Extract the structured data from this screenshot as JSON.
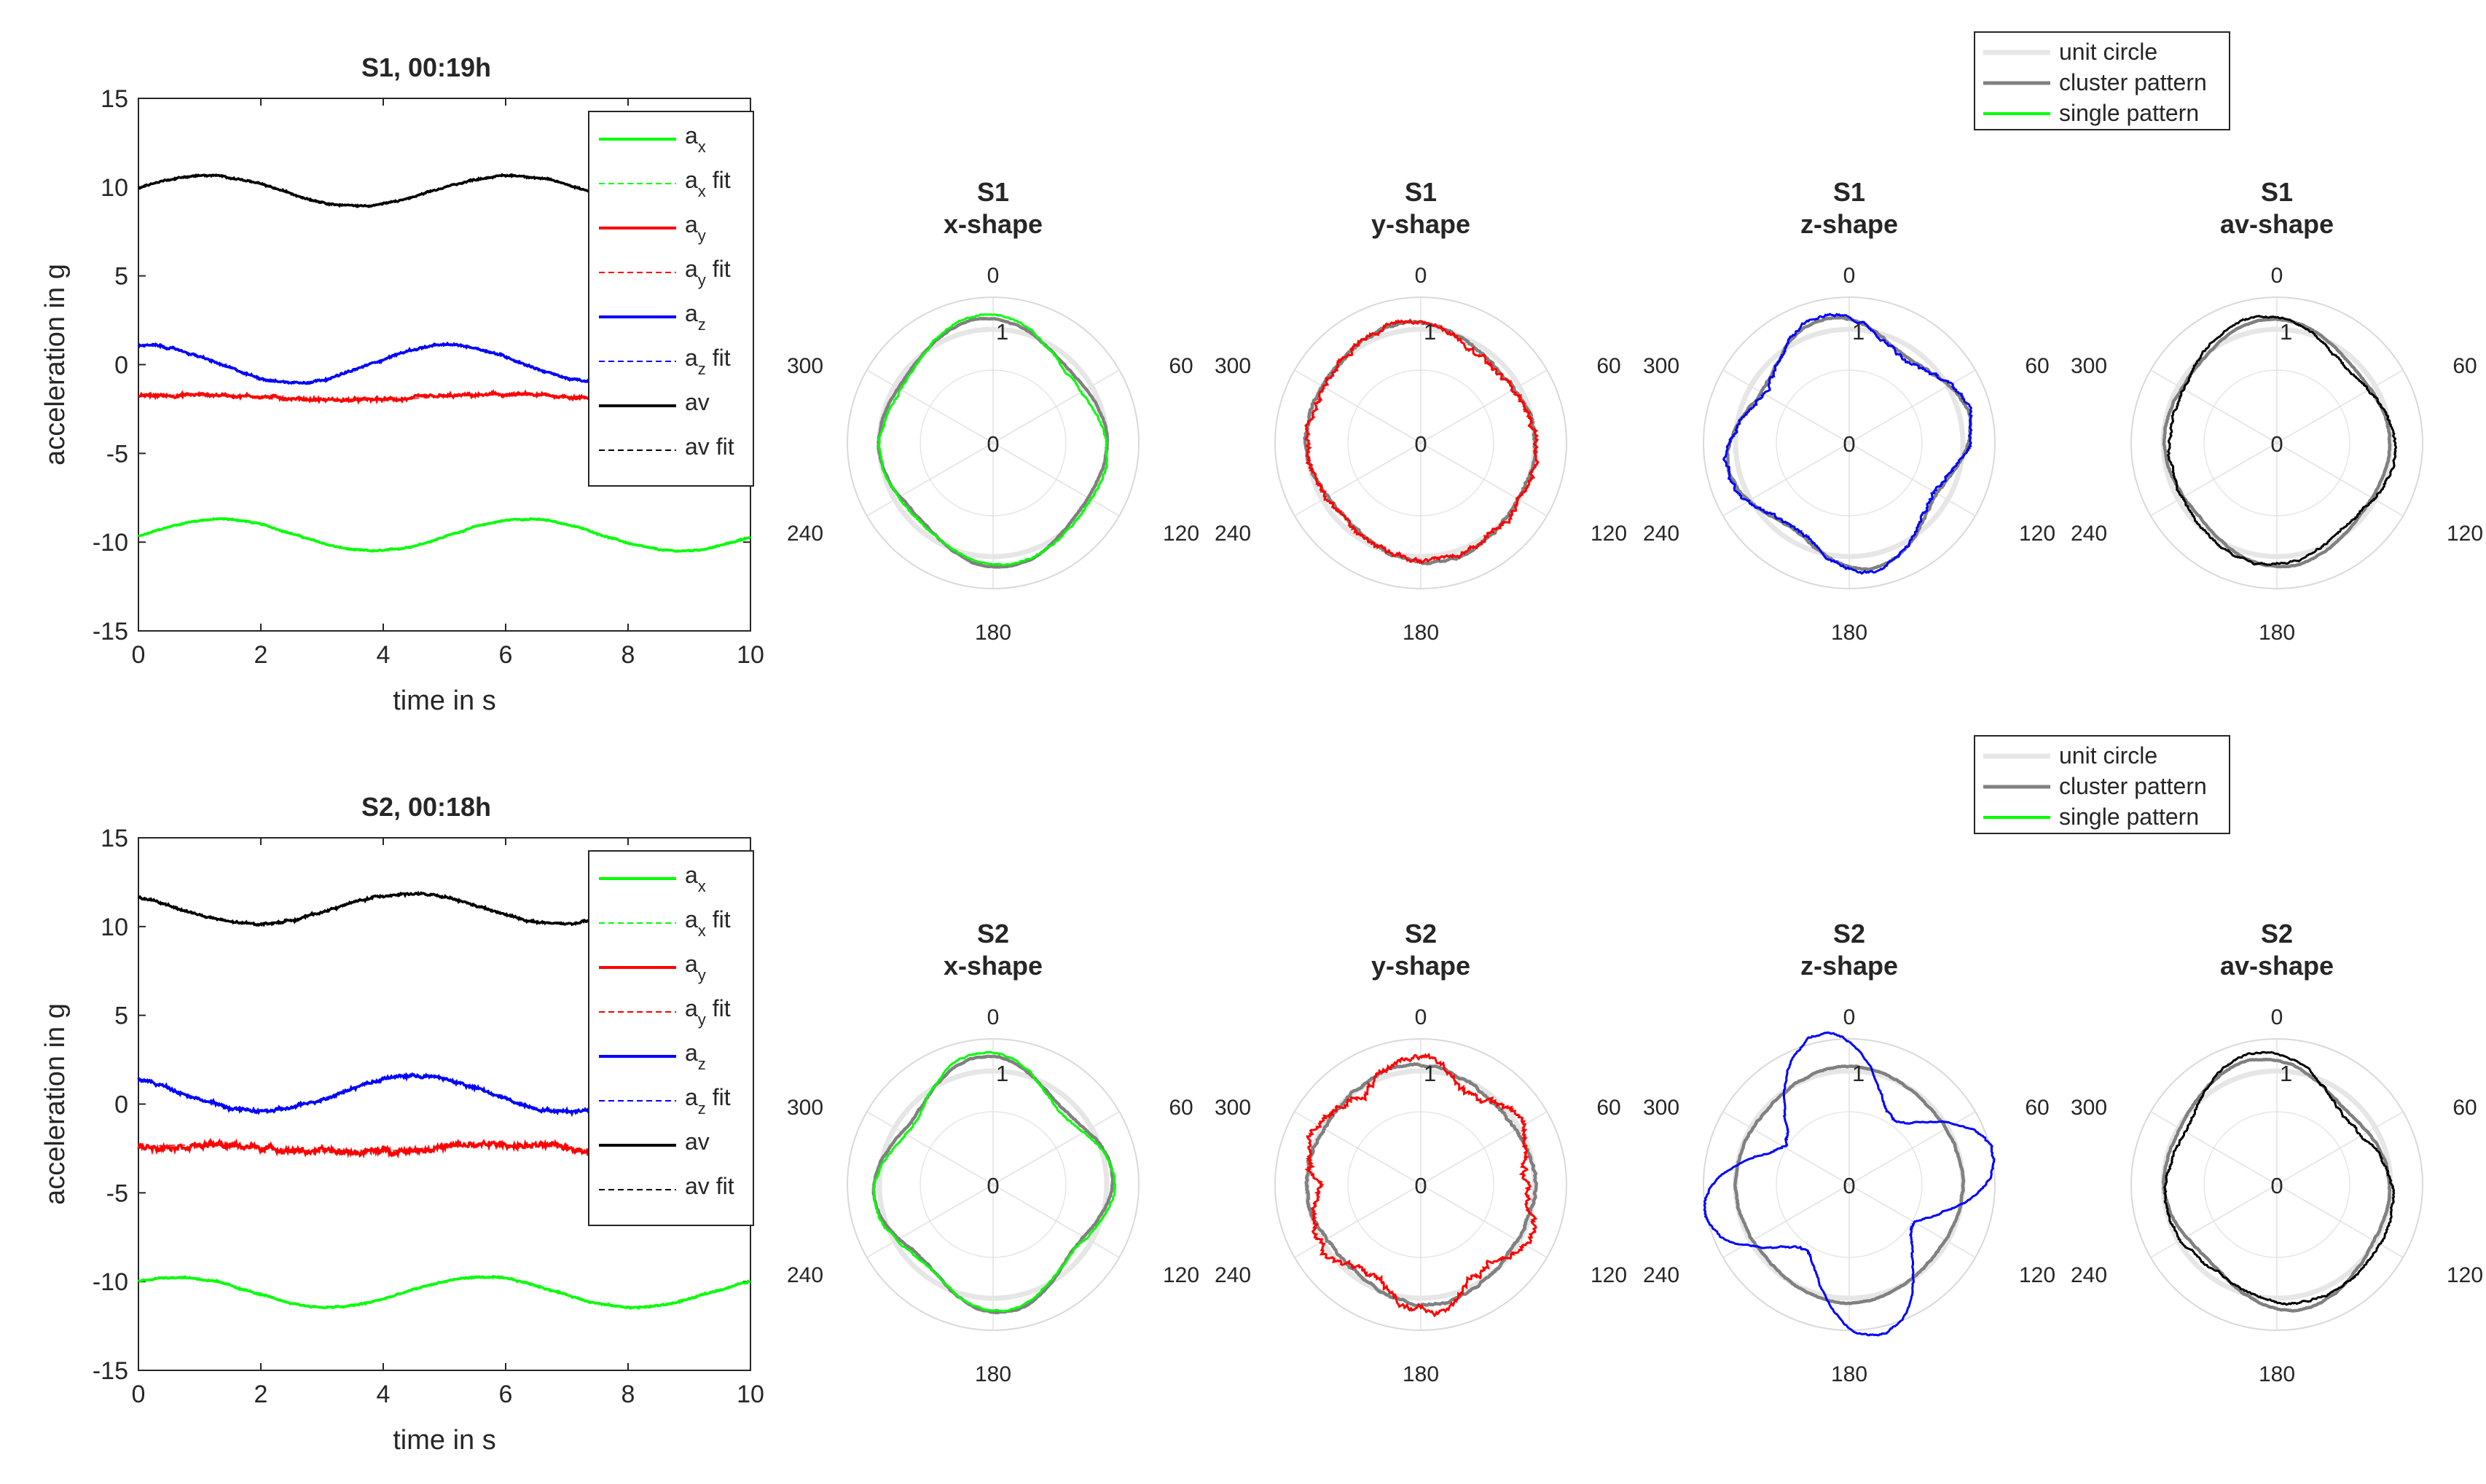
{
  "chart_data": [
    {
      "type": "line",
      "title": "S1, 00:19h",
      "xlabel": "time in s",
      "ylabel": "acceleration in g",
      "xlim": [
        0,
        10
      ],
      "ylim": [
        -15,
        15
      ],
      "xticks": [
        "0",
        "2",
        "4",
        "6",
        "8",
        "10"
      ],
      "yticks": [
        "15",
        "10",
        "5",
        "0",
        "-5",
        "-10",
        "-15"
      ],
      "legend": [
        {
          "label": "a",
          "sub": "x",
          "suffix": "",
          "color": "#00ff00",
          "dashed": false
        },
        {
          "label": "a",
          "sub": "x",
          "suffix": " fit",
          "color": "#00ff00",
          "dashed": true
        },
        {
          "label": "a",
          "sub": "y",
          "suffix": "",
          "color": "#ff0000",
          "dashed": false
        },
        {
          "label": "a",
          "sub": "y",
          "suffix": " fit",
          "color": "#ff0000",
          "dashed": true
        },
        {
          "label": "a",
          "sub": "z",
          "suffix": "",
          "color": "#0000ff",
          "dashed": false
        },
        {
          "label": "a",
          "sub": "z",
          "suffix": " fit",
          "color": "#0000ff",
          "dashed": true
        },
        {
          "label": "av",
          "sub": "",
          "suffix": "",
          "color": "#000000",
          "dashed": false
        },
        {
          "label": "av",
          "sub": "",
          "suffix": " fit",
          "color": "#000000",
          "dashed": true
        }
      ],
      "series": [
        {
          "name": "ax",
          "color": "#00ff00",
          "mean": -9.6,
          "amp": 0.9,
          "period": 5.0,
          "phase": -0.1,
          "noise": 0.05
        },
        {
          "name": "ay",
          "color": "#ff0000",
          "mean": -1.85,
          "amp": 0.15,
          "period": 5.0,
          "phase": 0.3,
          "noise": 0.12
        },
        {
          "name": "az",
          "color": "#0000ff",
          "mean": 0.05,
          "amp": 1.05,
          "period": 5.0,
          "phase": 1.5,
          "noise": 0.08
        },
        {
          "name": "av",
          "color": "#000000",
          "mean": 9.8,
          "amp": 0.85,
          "period": 5.0,
          "phase": 0.2,
          "noise": 0.06
        }
      ]
    },
    {
      "type": "line",
      "title": "S2, 00:18h",
      "xlabel": "time in s",
      "ylabel": "acceleration in g",
      "xlim": [
        0,
        10
      ],
      "ylim": [
        -15,
        15
      ],
      "xticks": [
        "0",
        "2",
        "4",
        "6",
        "8",
        "10"
      ],
      "yticks": [
        "15",
        "10",
        "5",
        "0",
        "-5",
        "-10",
        "-15"
      ],
      "legend": [
        {
          "label": "a",
          "sub": "x",
          "suffix": "",
          "color": "#00ff00",
          "dashed": false
        },
        {
          "label": "a",
          "sub": "x",
          "suffix": " fit",
          "color": "#00ff00",
          "dashed": true
        },
        {
          "label": "a",
          "sub": "y",
          "suffix": "",
          "color": "#ff0000",
          "dashed": false
        },
        {
          "label": "a",
          "sub": "y",
          "suffix": " fit",
          "color": "#ff0000",
          "dashed": true
        },
        {
          "label": "a",
          "sub": "z",
          "suffix": "",
          "color": "#0000ff",
          "dashed": false
        },
        {
          "label": "a",
          "sub": "z",
          "suffix": " fit",
          "color": "#0000ff",
          "dashed": true
        },
        {
          "label": "av",
          "sub": "",
          "suffix": "",
          "color": "#000000",
          "dashed": false
        },
        {
          "label": "av",
          "sub": "",
          "suffix": " fit",
          "color": "#000000",
          "dashed": true
        }
      ],
      "series": [
        {
          "name": "ax",
          "color": "#00ff00",
          "mean": -10.6,
          "amp": 0.85,
          "period": 5.0,
          "phase": 0.8,
          "noise": 0.06
        },
        {
          "name": "ay",
          "color": "#ff0000",
          "mean": -2.5,
          "amp": 0.2,
          "period": 5.0,
          "phase": 0.4,
          "noise": 0.22
        },
        {
          "name": "az",
          "color": "#0000ff",
          "mean": 0.6,
          "amp": 1.0,
          "period": 5.0,
          "phase": 2.2,
          "noise": 0.12
        },
        {
          "name": "av",
          "color": "#000000",
          "mean": 11.0,
          "amp": 0.85,
          "period": 5.0,
          "phase": 2.3,
          "noise": 0.08
        }
      ]
    },
    {
      "type": "polar",
      "legend": [
        {
          "label": "unit circle",
          "color": "#e6e6e6"
        },
        {
          "label": "cluster pattern",
          "color": "#808080"
        },
        {
          "label": "single pattern",
          "color": "#00ff00"
        }
      ],
      "theta_ticks": [
        "0",
        "60",
        "120",
        "180",
        "240",
        "300"
      ],
      "r_ticks": [
        "0",
        "1"
      ],
      "rows": [
        {
          "panels": [
            {
              "title1": "S1",
              "title2": "x-shape",
              "color": "#00ff00",
              "single": {
                "a4": 0.05,
                "p4": 0.2,
                "a2": 0.06,
                "p2": 0.5,
                "a3": 0.03,
                "p3": 0.0,
                "n": 0.01
              },
              "cluster": {
                "a4": 0.05,
                "p4": 0.25,
                "a2": 0.05,
                "p2": 0.5,
                "n": 0.005
              }
            },
            {
              "title1": "S1",
              "title2": "y-shape",
              "color": "#ff0000",
              "single": {
                "a4": 0.03,
                "p4": 0.3,
                "a2": 0.04,
                "p2": 1.0,
                "a3": 0.02,
                "p3": 0.5,
                "n": 0.03
              },
              "cluster": {
                "a4": 0.03,
                "p4": 0.3,
                "a2": 0.04,
                "p2": 1.0,
                "n": 0.012
              }
            },
            {
              "title1": "S1",
              "title2": "z-shape",
              "color": "#0000ff",
              "single": {
                "a4": 0.12,
                "p4": 0.8,
                "a2": 0.02,
                "p2": 0.0,
                "a3": 0.0,
                "p3": 0.0,
                "n": 0.02
              },
              "cluster": {
                "a4": 0.1,
                "p4": 0.8,
                "a2": 0.02,
                "p2": 0.0,
                "n": 0.008
              }
            },
            {
              "title1": "S1",
              "title2": "av-shape",
              "color": "#000000",
              "single": {
                "a4": 0.04,
                "p4": 0.1,
                "a2": 0.05,
                "p2": 0.3,
                "a3": 0.05,
                "p3": 1.2,
                "n": 0.012
              },
              "cluster": {
                "a4": 0.04,
                "p4": 0.1,
                "a2": 0.05,
                "p2": 0.3,
                "n": 0.005
              }
            }
          ]
        },
        {
          "panels": [
            {
              "title1": "S2",
              "title2": "x-shape",
              "color": "#00ff00",
              "single": {
                "a4": 0.1,
                "p4": 0.3,
                "a2": 0.04,
                "p2": 0.2,
                "a3": 0.03,
                "p3": 0.4,
                "n": 0.01
              },
              "cluster": {
                "a4": 0.09,
                "p4": 0.3,
                "a2": 0.04,
                "p2": 0.2,
                "n": 0.006
              }
            },
            {
              "title1": "S2",
              "title2": "y-shape",
              "color": "#ff0000",
              "single": {
                "a4": 0.02,
                "p4": 0.0,
                "a2": 0.03,
                "p2": 0.6,
                "a6": 0.08,
                "p6": 0.3,
                "n": 0.04
              },
              "cluster": {
                "a4": 0.03,
                "p4": 0.2,
                "a2": 0.03,
                "p2": 0.6,
                "n": 0.012
              }
            },
            {
              "title1": "S2",
              "title2": "z-shape",
              "color": "#0000ff",
              "single": {
                "a4": 0.32,
                "p4": 0.8,
                "a2": 0.03,
                "p2": 0.0,
                "a3": 0.0,
                "p3": 0.0,
                "n": 0.015
              },
              "cluster": {
                "a4": 0.02,
                "p4": 0.0,
                "a2": 0.02,
                "p2": 0.0,
                "n": 0.006
              }
            },
            {
              "title1": "S2",
              "title2": "av-shape",
              "color": "#000000",
              "single": {
                "a4": 0.05,
                "p4": 0.5,
                "a2": 0.08,
                "p2": 0.9,
                "a3": 0.06,
                "p3": 0.2,
                "n": 0.012
              },
              "cluster": {
                "a4": 0.05,
                "p4": 0.5,
                "a2": 0.08,
                "p2": 0.9,
                "n": 0.006
              }
            }
          ]
        }
      ]
    }
  ]
}
